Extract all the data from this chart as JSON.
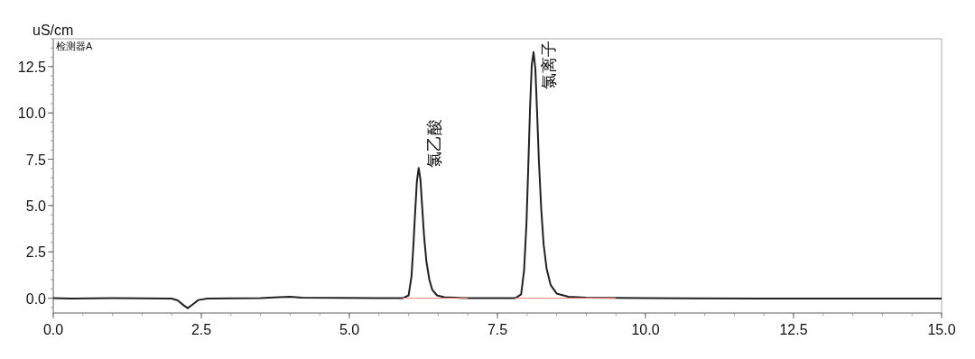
{
  "chart_data": {
    "type": "line",
    "ylabel": "uS/cm",
    "annotations": [
      "检测器A",
      {
        "text": "氯乙酸",
        "x": 6.17,
        "y": 7.03
      },
      {
        "text": "氯离子",
        "x": 8.11,
        "y": 13.28
      }
    ],
    "series": [
      {
        "color": "#222222",
        "x": [
          0,
          0.3,
          1.0,
          2.0,
          2.1,
          2.2,
          2.27,
          2.35,
          2.45,
          2.6,
          3.5,
          3.8,
          4.0,
          4.2,
          5.5,
          5.9,
          6.0,
          6.05,
          6.08,
          6.11,
          6.14,
          6.17,
          6.2,
          6.23,
          6.26,
          6.3,
          6.35,
          6.4,
          6.48,
          6.6,
          7.0,
          7.8,
          7.9,
          7.95,
          7.99,
          8.02,
          8.05,
          8.08,
          8.11,
          8.14,
          8.17,
          8.2,
          8.24,
          8.28,
          8.33,
          8.4,
          8.5,
          8.7,
          9.0,
          10.0,
          12.0,
          15.0
        ],
        "values": [
          0,
          -0.02,
          0,
          -0.02,
          -0.12,
          -0.38,
          -0.54,
          -0.35,
          -0.1,
          -0.02,
          0,
          0.05,
          0.08,
          0.03,
          0,
          0,
          0.15,
          1.2,
          2.8,
          4.6,
          6.3,
          7.03,
          6.4,
          4.9,
          3.4,
          2.0,
          1.0,
          0.45,
          0.15,
          0.05,
          0,
          0,
          0.2,
          1.5,
          4.0,
          7.0,
          10.2,
          12.6,
          13.28,
          12.4,
          10.0,
          7.4,
          4.8,
          2.9,
          1.6,
          0.7,
          0.25,
          0.08,
          0.03,
          0,
          -0.02,
          -0.02
        ]
      },
      {
        "color": "#ff8080",
        "x": [
          5.9,
          7.0
        ],
        "values": [
          0,
          0
        ]
      },
      {
        "color": "#ff8080",
        "x": [
          7.8,
          9.5
        ],
        "values": [
          0,
          0
        ]
      }
    ],
    "xlim": [
      0,
      15
    ],
    "ylim": [
      -0.8,
      14.0
    ],
    "xticks": [
      {
        "value": 0,
        "label": "0.0"
      },
      2.5,
      {
        "value": 5,
        "label": "5.0"
      },
      7.5,
      {
        "value": 10,
        "label": "10.0"
      },
      12.5,
      {
        "value": 15,
        "label": "15.0"
      }
    ],
    "yticks": [
      {
        "value": 0,
        "label": "0.0"
      },
      2.5,
      {
        "value": 5,
        "label": "5.0"
      },
      7.5,
      {
        "value": 10,
        "label": "10.0"
      },
      12.5
    ],
    "grid": false,
    "marker": "none",
    "line_style": "solid"
  }
}
